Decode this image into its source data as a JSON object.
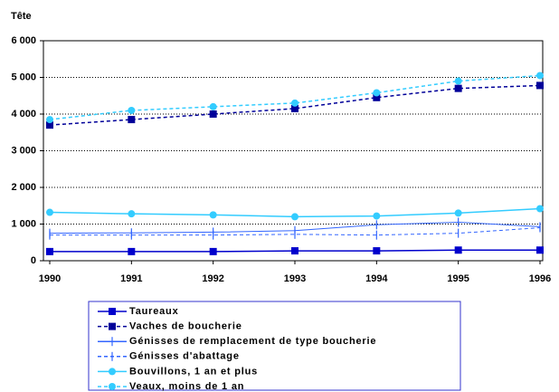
{
  "chart_data": {
    "type": "line",
    "y_label": "Tête",
    "x": [
      1990,
      1991,
      1992,
      1993,
      1994,
      1995,
      1996
    ],
    "xlim": [
      1990,
      1996
    ],
    "xticks": [
      1990,
      1991,
      1992,
      1993,
      1994,
      1995,
      1996
    ],
    "ylim": [
      0,
      6000
    ],
    "yticks": [
      0,
      {
        "value": 1000,
        "label": "1 000"
      },
      {
        "value": 2000,
        "label": "2 000"
      },
      {
        "value": 3000,
        "label": "3 000"
      },
      {
        "value": 4000,
        "label": "4 000"
      },
      {
        "value": 5000,
        "label": "5 000"
      },
      {
        "value": 6000,
        "label": "6 000"
      }
    ],
    "grid": true,
    "series": [
      {
        "name": "Taureaux",
        "color": "#0000cc",
        "marker": "square",
        "dashed": false,
        "values": [
          250,
          250,
          250,
          270,
          270,
          290,
          290
        ]
      },
      {
        "name": "Vaches de boucherie",
        "color": "#000099",
        "marker": "square",
        "dashed": true,
        "values": [
          3700,
          3850,
          4000,
          4150,
          4450,
          4700,
          4780
        ]
      },
      {
        "name": "Génisses de remplacement de type boucherie",
        "color": "#3366ff",
        "marker": "plus",
        "dashed": false,
        "values": [
          750,
          760,
          780,
          820,
          980,
          1050,
          930
        ]
      },
      {
        "name": "Génisses d'abattage",
        "color": "#3366ff",
        "marker": "plus",
        "dashed": true,
        "values": [
          700,
          700,
          700,
          720,
          700,
          750,
          900
        ]
      },
      {
        "name": "Bouvillons, 1 an et plus",
        "color": "#33ccff",
        "marker": "circle",
        "dashed": false,
        "values": [
          1320,
          1280,
          1250,
          1200,
          1220,
          1300,
          1420
        ]
      },
      {
        "name": "Veaux, moins de 1 an",
        "color": "#33ccff",
        "marker": "circle",
        "dashed": true,
        "values": [
          3850,
          4100,
          4200,
          4300,
          4580,
          4900,
          5050
        ]
      }
    ]
  }
}
